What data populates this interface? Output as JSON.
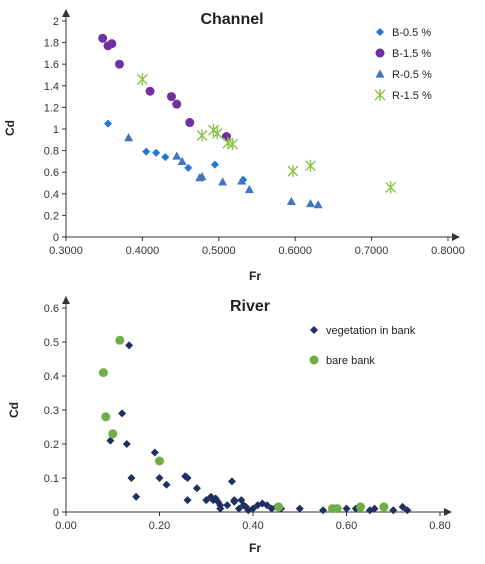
{
  "chart_data": [
    {
      "type": "scatter",
      "title": "Channel",
      "xlabel": "Fr",
      "ylabel": "Cd",
      "xlim": [
        0.3,
        0.8
      ],
      "ylim": [
        0,
        2
      ],
      "xticks": [
        "0.3000",
        "0.4000",
        "0.5000",
        "0.6000",
        "0.7000",
        "0.8000"
      ],
      "yticks": [
        "0",
        "0.2",
        "0.4",
        "0.6",
        "0.8",
        "1",
        "1.2",
        "1.4",
        "1.6",
        "1.8",
        "2"
      ],
      "legend_position": "top-right",
      "series": [
        {
          "name": "B-0.5 %",
          "marker": "diamond",
          "color": "#1f77d4",
          "points": [
            [
              0.355,
              1.05
            ],
            [
              0.405,
              0.79
            ],
            [
              0.418,
              0.78
            ],
            [
              0.43,
              0.74
            ],
            [
              0.46,
              0.64
            ],
            [
              0.495,
              0.67
            ],
            [
              0.532,
              0.53
            ]
          ]
        },
        {
          "name": "B-1.5 %",
          "marker": "circle",
          "color": "#7030a0",
          "points": [
            [
              0.348,
              1.84
            ],
            [
              0.355,
              1.77
            ],
            [
              0.36,
              1.79
            ],
            [
              0.37,
              1.6
            ],
            [
              0.41,
              1.35
            ],
            [
              0.438,
              1.3
            ],
            [
              0.445,
              1.23
            ],
            [
              0.462,
              1.06
            ],
            [
              0.51,
              0.93
            ]
          ]
        },
        {
          "name": "R-0.5 %",
          "marker": "triangle",
          "color": "#4472c4",
          "points": [
            [
              0.382,
              0.92
            ],
            [
              0.445,
              0.75
            ],
            [
              0.452,
              0.7
            ],
            [
              0.475,
              0.55
            ],
            [
              0.478,
              0.56
            ],
            [
              0.505,
              0.51
            ],
            [
              0.53,
              0.52
            ],
            [
              0.54,
              0.44
            ],
            [
              0.595,
              0.33
            ],
            [
              0.62,
              0.31
            ],
            [
              0.63,
              0.3
            ]
          ]
        },
        {
          "name": "R-1.5 %",
          "marker": "star",
          "color": "#8bc34a",
          "points": [
            [
              0.4,
              1.46
            ],
            [
              0.478,
              0.94
            ],
            [
              0.493,
              0.99
            ],
            [
              0.498,
              0.96
            ],
            [
              0.512,
              0.87
            ],
            [
              0.518,
              0.86
            ],
            [
              0.597,
              0.61
            ],
            [
              0.62,
              0.66
            ],
            [
              0.725,
              0.46
            ]
          ]
        }
      ]
    },
    {
      "type": "scatter",
      "title": "River",
      "xlabel": "Fr",
      "ylabel": "Cd",
      "xlim": [
        0,
        0.8
      ],
      "ylim": [
        0,
        0.6
      ],
      "xticks": [
        "0.00",
        "0.20",
        "0.40",
        "0.60",
        "0.80"
      ],
      "yticks": [
        "0",
        "0.1",
        "0.2",
        "0.3",
        "0.4",
        "0.5",
        "0.6"
      ],
      "legend_position": "top-right",
      "series": [
        {
          "name": "vegetation in bank",
          "marker": "diamond",
          "color": "#1f2f5f",
          "points": [
            [
              0.095,
              0.21
            ],
            [
              0.12,
              0.29
            ],
            [
              0.13,
              0.2
            ],
            [
              0.135,
              0.49
            ],
            [
              0.14,
              0.1
            ],
            [
              0.15,
              0.045
            ],
            [
              0.19,
              0.175
            ],
            [
              0.2,
              0.1
            ],
            [
              0.215,
              0.08
            ],
            [
              0.255,
              0.105
            ],
            [
              0.26,
              0.1
            ],
            [
              0.26,
              0.035
            ],
            [
              0.28,
              0.07
            ],
            [
              0.3,
              0.035
            ],
            [
              0.31,
              0.045
            ],
            [
              0.315,
              0.035
            ],
            [
              0.32,
              0.04
            ],
            [
              0.325,
              0.03
            ],
            [
              0.33,
              0.02
            ],
            [
              0.33,
              0.01
            ],
            [
              0.345,
              0.02
            ],
            [
              0.355,
              0.09
            ],
            [
              0.36,
              0.035
            ],
            [
              0.36,
              0.03
            ],
            [
              0.37,
              0.01
            ],
            [
              0.375,
              0.035
            ],
            [
              0.38,
              0.02
            ],
            [
              0.385,
              0.015
            ],
            [
              0.39,
              0.005
            ],
            [
              0.4,
              0.01
            ],
            [
              0.41,
              0.02
            ],
            [
              0.42,
              0.025
            ],
            [
              0.43,
              0.02
            ],
            [
              0.44,
              0.01
            ],
            [
              0.45,
              0.015
            ],
            [
              0.46,
              0.01
            ],
            [
              0.5,
              0.01
            ],
            [
              0.55,
              0.005
            ],
            [
              0.58,
              0.01
            ],
            [
              0.6,
              0.01
            ],
            [
              0.62,
              0.01
            ],
            [
              0.65,
              0.005
            ],
            [
              0.66,
              0.01
            ],
            [
              0.7,
              0.005
            ],
            [
              0.72,
              0.015
            ],
            [
              0.73,
              0.005
            ]
          ]
        },
        {
          "name": "bare bank",
          "marker": "circle",
          "color": "#70ad47",
          "points": [
            [
              0.08,
              0.41
            ],
            [
              0.085,
              0.28
            ],
            [
              0.1,
              0.23
            ],
            [
              0.115,
              0.505
            ],
            [
              0.2,
              0.15
            ],
            [
              0.455,
              0.015
            ],
            [
              0.57,
              0.01
            ],
            [
              0.58,
              0.01
            ],
            [
              0.63,
              0.015
            ],
            [
              0.68,
              0.015
            ]
          ]
        }
      ]
    }
  ]
}
